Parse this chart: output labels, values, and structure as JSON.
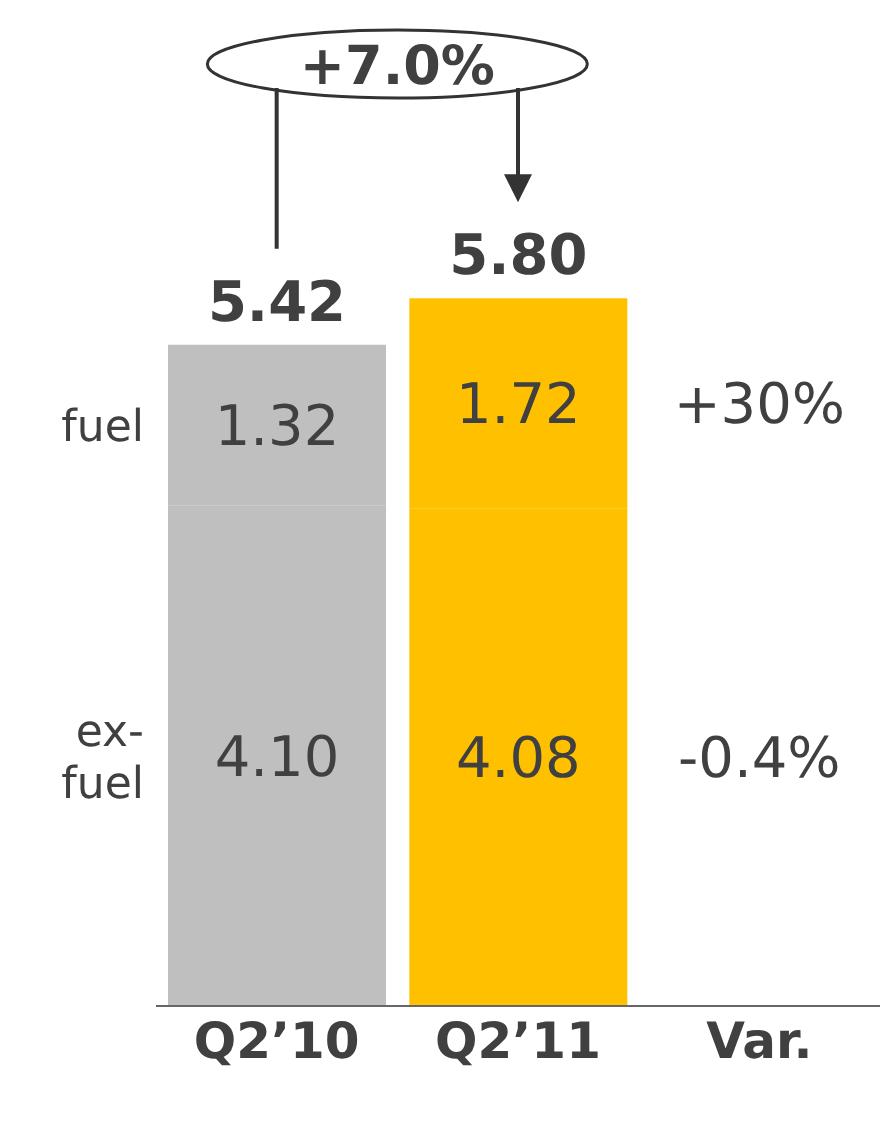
{
  "chart_data": {
    "type": "bar",
    "stacked": true,
    "categories": [
      "Q2’10",
      "Q2’11",
      "Var."
    ],
    "series": [
      {
        "name": "ex-fuel",
        "colors": [
          "#bfbfbf",
          "#ffc000",
          null
        ],
        "values": [
          4.1,
          4.08,
          null
        ],
        "value_labels": [
          "4.10",
          "4.08",
          null
        ]
      },
      {
        "name": "fuel",
        "colors": [
          "#bfbfbf",
          "#ffc000",
          null
        ],
        "values": [
          1.32,
          1.72,
          null
        ],
        "value_labels": [
          "1.32",
          "1.72",
          null
        ]
      }
    ],
    "totals": [
      "5.42",
      "5.80"
    ],
    "annotations": [
      "+7.0%",
      "+30%",
      "-0.4%"
    ]
  }
}
